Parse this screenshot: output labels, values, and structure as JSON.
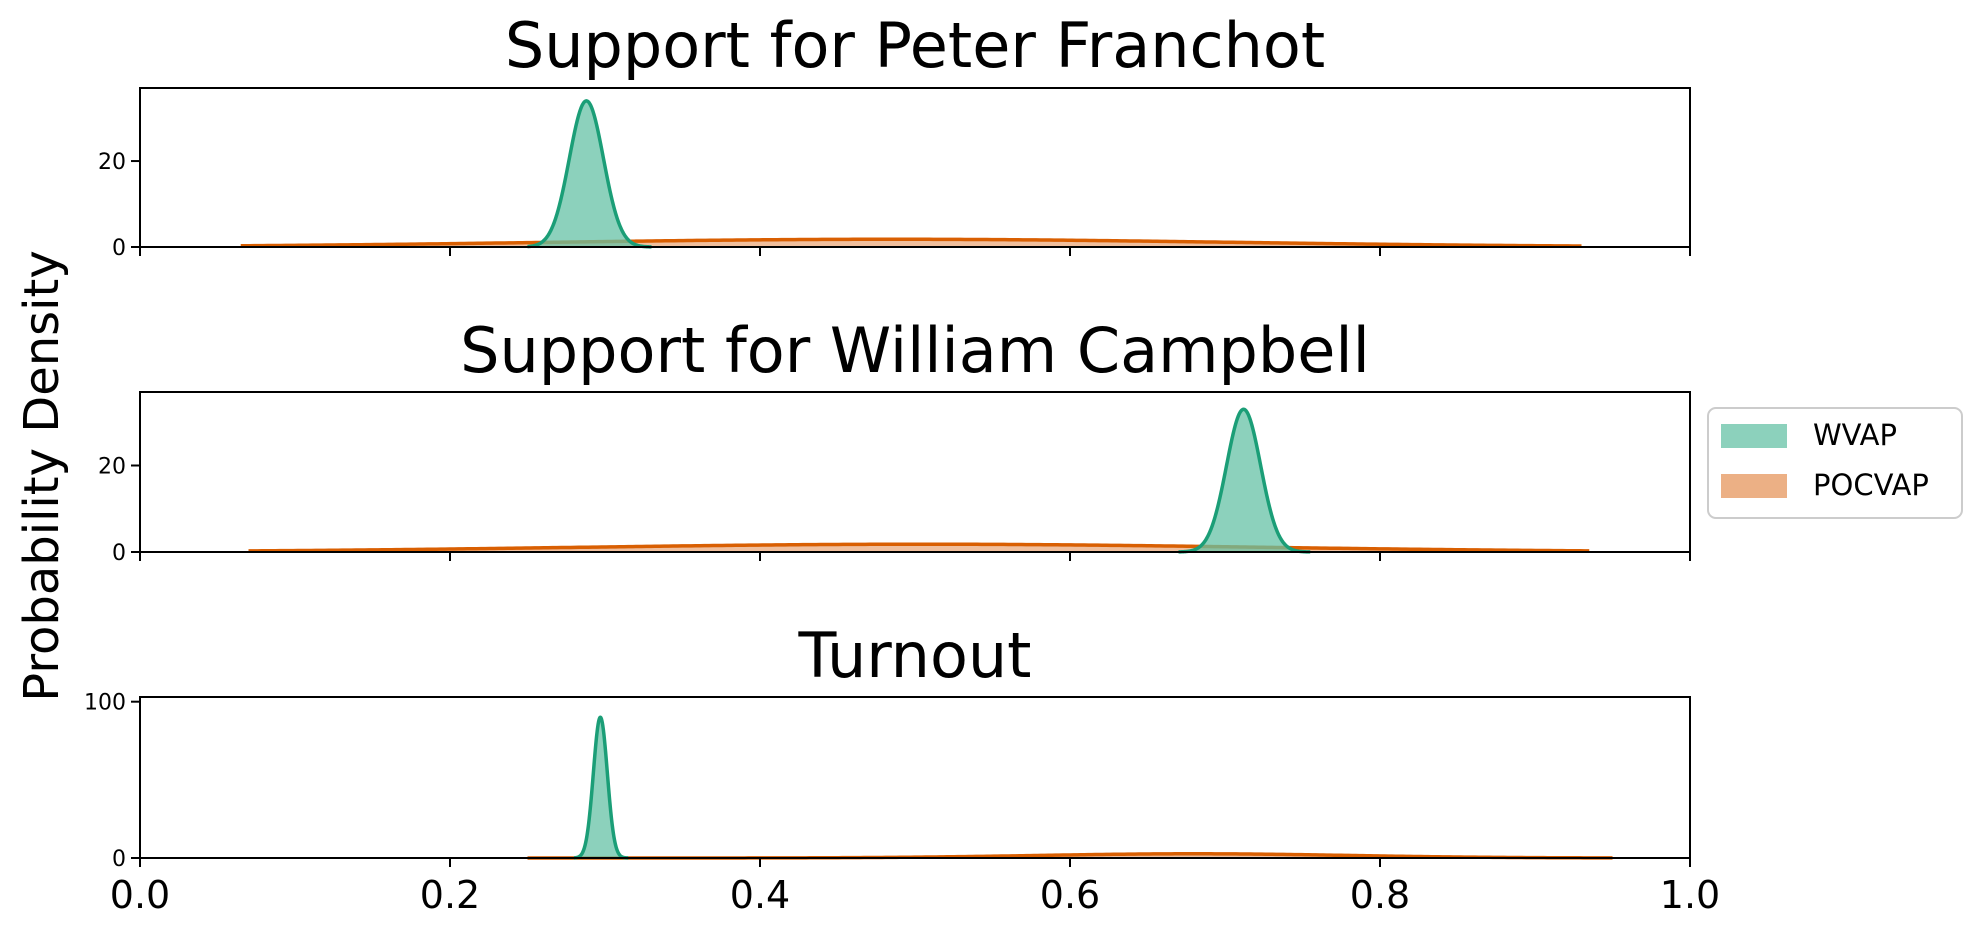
{
  "figure": {
    "ylabel": "Probability Density"
  },
  "legend": {
    "placement": "right",
    "items": [
      {
        "label": "WVAP",
        "color": "#66c2a5"
      },
      {
        "label": "POCVAP",
        "color": "#e6955c"
      }
    ]
  },
  "colors": {
    "wvap_line": "#1b9e77",
    "wvap_fill": "#66c2a5",
    "pocvap_line": "#d95f02",
    "pocvap_fill": "#e6955c"
  },
  "chart_data": [
    {
      "type": "area",
      "title": "Support for Peter Franchot",
      "xlim": [
        0,
        1
      ],
      "ylim": [
        0,
        37
      ],
      "yticks": [
        "0",
        "20"
      ],
      "ytick_values": [
        0,
        20
      ],
      "xticks": [],
      "xtick_values": [
        0,
        0.2,
        0.4,
        0.6,
        0.8,
        1.0
      ],
      "series": [
        {
          "name": "WVAP",
          "kind": "gaussian",
          "mean": 0.288,
          "sd": 0.011,
          "peak": 34,
          "range": [
            0.25,
            0.33
          ]
        },
        {
          "name": "POCVAP",
          "kind": "gaussian",
          "mean": 0.485,
          "sd": 0.22,
          "peak": 1.8,
          "range": [
            0.065,
            0.93
          ]
        }
      ]
    },
    {
      "type": "area",
      "title": "Support for William Campbell",
      "xlim": [
        0,
        1
      ],
      "ylim": [
        0,
        37
      ],
      "yticks": [
        "0",
        "20"
      ],
      "ytick_values": [
        0,
        20
      ],
      "xticks": [],
      "xtick_values": [
        0,
        0.2,
        0.4,
        0.6,
        0.8,
        1.0
      ],
      "series": [
        {
          "name": "WVAP",
          "kind": "gaussian",
          "mean": 0.712,
          "sd": 0.011,
          "peak": 33,
          "range": [
            0.67,
            0.755
          ]
        },
        {
          "name": "POCVAP",
          "kind": "gaussian",
          "mean": 0.505,
          "sd": 0.22,
          "peak": 1.8,
          "range": [
            0.07,
            0.935
          ]
        }
      ]
    },
    {
      "type": "area",
      "title": "Turnout",
      "xlim": [
        0,
        1
      ],
      "ylim": [
        0,
        103
      ],
      "yticks": [
        "0",
        "100"
      ],
      "ytick_values": [
        0,
        100
      ],
      "xticks": [
        "0.0",
        "0.2",
        "0.4",
        "0.6",
        "0.8",
        "1.0"
      ],
      "xtick_values": [
        0,
        0.2,
        0.4,
        0.6,
        0.8,
        1.0
      ],
      "series": [
        {
          "name": "WVAP",
          "kind": "gaussian",
          "mean": 0.297,
          "sd": 0.0045,
          "peak": 90,
          "range": [
            0.28,
            0.315
          ]
        },
        {
          "name": "POCVAP",
          "kind": "gaussian",
          "mean": 0.68,
          "sd": 0.1,
          "peak": 2.7,
          "range": [
            0.25,
            0.95
          ]
        }
      ]
    }
  ]
}
